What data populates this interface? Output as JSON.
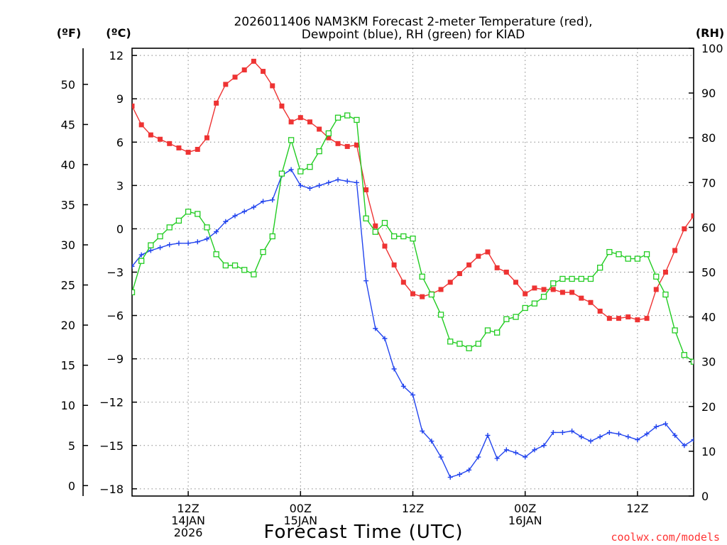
{
  "chart_data": {
    "type": "line",
    "title": [
      "2026011406 NAM3KM Forecast 2-meter Temperature (red),",
      "Dewpoint (blue), RH (green) for KIAD"
    ],
    "xlabel": "Forecast Time (UTC)",
    "unit_labels": {
      "fahrenheit": "(ºF)",
      "celsius": "(ºC)",
      "rh": "(RH)"
    },
    "x_ticks": [
      {
        "hour": 6,
        "lines": [
          "12Z",
          "14JAN",
          "2026"
        ]
      },
      {
        "hour": 18,
        "lines": [
          "00Z",
          "15JAN"
        ]
      },
      {
        "hour": 30,
        "lines": [
          "12Z"
        ]
      },
      {
        "hour": 42,
        "lines": [
          "00Z",
          "16JAN"
        ]
      },
      {
        "hour": 54,
        "lines": [
          "12Z"
        ]
      }
    ],
    "x_range": [
      0,
      60
    ],
    "celsius_axis": {
      "ylim": [
        -18.5,
        12.5
      ],
      "ticks": [
        12,
        9,
        6,
        3,
        0,
        -3,
        -6,
        -9,
        -12,
        -15,
        -18
      ]
    },
    "fahrenheit_axis": {
      "ticks": [
        50,
        45,
        40,
        35,
        30,
        25,
        20,
        15,
        10,
        5,
        0
      ]
    },
    "rh_axis": {
      "ylim": [
        0,
        100
      ],
      "ticks": [
        100,
        90,
        80,
        70,
        60,
        50,
        40,
        30,
        20,
        10,
        0
      ]
    },
    "grid": true,
    "series": [
      {
        "name": "Temperature",
        "axis": "celsius",
        "color": "#ee3333",
        "marker": "filled-square",
        "x": [
          0,
          1,
          2,
          3,
          4,
          5,
          6,
          7,
          8,
          9,
          10,
          11,
          12,
          13,
          14,
          15,
          16,
          17,
          18,
          19,
          20,
          21,
          22,
          23,
          24,
          25,
          26,
          27,
          28,
          29,
          30,
          31,
          32,
          33,
          34,
          35,
          36,
          37,
          38,
          39,
          40,
          41,
          42,
          43,
          44,
          45,
          46,
          47,
          48,
          49,
          50,
          51,
          52,
          53,
          54,
          55,
          56,
          57,
          58,
          59,
          60
        ],
        "values": [
          8.5,
          7.2,
          6.5,
          6.2,
          5.9,
          5.6,
          5.3,
          5.5,
          6.3,
          8.7,
          10.0,
          10.5,
          11.0,
          11.6,
          10.9,
          9.9,
          8.5,
          7.4,
          7.7,
          7.4,
          6.9,
          6.3,
          5.9,
          5.7,
          5.8,
          2.7,
          0.2,
          -1.2,
          -2.5,
          -3.7,
          -4.5,
          -4.7,
          -4.5,
          -4.2,
          -3.7,
          -3.1,
          -2.5,
          -1.9,
          -1.6,
          -2.7,
          -3.0,
          -3.7,
          -4.5,
          -4.1,
          -4.2,
          -4.2,
          -4.4,
          -4.4,
          -4.8,
          -5.1,
          -5.7,
          -6.2,
          -6.2,
          -6.1,
          -6.3,
          -6.2,
          -4.2,
          -3.0,
          -1.5,
          0.0,
          0.9
        ]
      },
      {
        "name": "Dewpoint",
        "axis": "celsius",
        "color": "#2244ee",
        "marker": "plus",
        "x": [
          0,
          1,
          2,
          3,
          4,
          5,
          6,
          7,
          8,
          9,
          10,
          11,
          12,
          13,
          14,
          15,
          16,
          17,
          18,
          19,
          20,
          21,
          22,
          23,
          24,
          25,
          26,
          27,
          28,
          29,
          30,
          31,
          32,
          33,
          34,
          35,
          36,
          37,
          38,
          39,
          40,
          41,
          42,
          43,
          44,
          45,
          46,
          47,
          48,
          49,
          50,
          51,
          52,
          53,
          54,
          55,
          56,
          57,
          58,
          59,
          60
        ],
        "values": [
          -2.6,
          -1.8,
          -1.5,
          -1.3,
          -1.1,
          -1.0,
          -1.0,
          -0.9,
          -0.7,
          -0.2,
          0.5,
          0.9,
          1.2,
          1.5,
          1.9,
          2.0,
          3.7,
          4.1,
          3.0,
          2.8,
          3.0,
          3.2,
          3.4,
          3.3,
          3.2,
          -3.6,
          -6.9,
          -7.6,
          -9.7,
          -10.9,
          -11.5,
          -14.0,
          -14.7,
          -15.8,
          -17.2,
          -17.0,
          -16.7,
          -15.8,
          -14.3,
          -15.9,
          -15.3,
          -15.5,
          -15.8,
          -15.3,
          -15.0,
          -14.1,
          -14.1,
          -14.0,
          -14.4,
          -14.7,
          -14.4,
          -14.1,
          -14.2,
          -14.4,
          -14.6,
          -14.2,
          -13.7,
          -13.5,
          -14.3,
          -15.0,
          -14.6
        ]
      },
      {
        "name": "RH",
        "axis": "rh",
        "color": "#22cc22",
        "marker": "open-square",
        "x": [
          0,
          1,
          2,
          3,
          4,
          5,
          6,
          7,
          8,
          9,
          10,
          11,
          12,
          13,
          14,
          15,
          16,
          17,
          18,
          19,
          20,
          21,
          22,
          23,
          24,
          25,
          26,
          27,
          28,
          29,
          30,
          31,
          32,
          33,
          34,
          35,
          36,
          37,
          38,
          39,
          40,
          41,
          42,
          43,
          44,
          45,
          46,
          47,
          48,
          49,
          50,
          51,
          52,
          53,
          54,
          55,
          56,
          57,
          58,
          59,
          60
        ],
        "values": [
          45.5,
          52.5,
          56.0,
          58.0,
          60.0,
          61.5,
          63.5,
          63.0,
          60.0,
          54.0,
          51.5,
          51.5,
          50.5,
          49.5,
          54.5,
          58.0,
          72.0,
          79.5,
          72.5,
          73.5,
          77.0,
          81.0,
          84.5,
          85.0,
          84.0,
          62.0,
          59.0,
          61.0,
          58.0,
          58.0,
          57.5,
          49.0,
          45.0,
          40.5,
          34.5,
          34.0,
          33.0,
          34.0,
          37.0,
          36.5,
          39.5,
          40.0,
          42.0,
          43.0,
          44.5,
          47.5,
          48.5,
          48.5,
          48.5,
          48.5,
          51.0,
          54.5,
          54.0,
          53.0,
          53.0,
          54.0,
          49.0,
          45.0,
          37.0,
          31.5,
          30.0
        ]
      }
    ],
    "credit": "coolwx.com/models"
  }
}
